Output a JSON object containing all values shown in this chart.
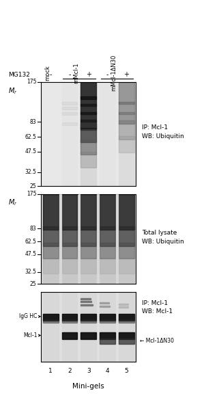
{
  "fig_width": 3.02,
  "fig_height": 5.85,
  "bg_color": "#ffffff",
  "panel1_label": "IP: Mcl-1\nWB: Ubiquitin",
  "panel2_label": "Total lysate\nWB: Ubiquitin",
  "panel3_label": "IP: Mcl-1\nWB: Mcl-1",
  "mw_markers": [
    175,
    83,
    62.5,
    47.5,
    32.5,
    25
  ],
  "col_labels": [
    "mock",
    "mMcl-1",
    "mMcl-1ΔN30"
  ],
  "mg132_labels": [
    "-",
    "-",
    "+",
    "-",
    "+"
  ],
  "lane_numbers": [
    "1",
    "2",
    "3",
    "4",
    "5"
  ],
  "xlabel": "Mini-gels",
  "igg_hc_label": "IgG HC",
  "mcl1_label": "Mcl-1",
  "mcl1_delta_label": "Mcl-1ΔN30",
  "panel_bg": "#e8e8e8",
  "panel_bg2": "#c8c8c8"
}
